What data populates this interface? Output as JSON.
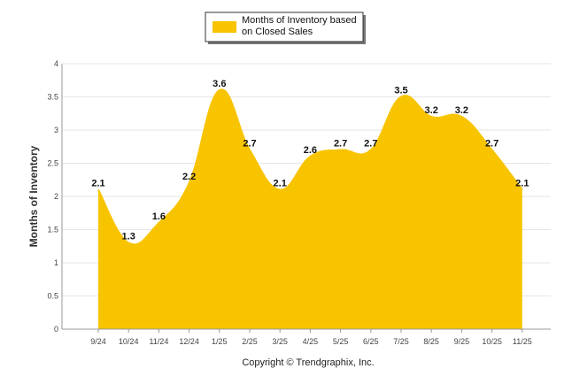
{
  "chart_data": {
    "type": "area",
    "title": "",
    "xlabel": "",
    "ylabel": "Months of Inventory",
    "ylim": [
      0,
      4
    ],
    "yticks": [
      "0",
      "0.5",
      "1",
      "1.5",
      "2",
      "2.5",
      "3",
      "3.5",
      "4"
    ],
    "ytick_values": [
      0,
      0.5,
      1,
      1.5,
      2,
      2.5,
      3,
      3.5,
      4
    ],
    "grid": true,
    "legend_position": "top-center",
    "categories": [
      "9/24",
      "10/24",
      "11/24",
      "12/24",
      "1/25",
      "2/25",
      "3/25",
      "4/25",
      "5/25",
      "6/25",
      "7/25",
      "8/25",
      "9/25",
      "10/25",
      "11/25"
    ],
    "series": [
      {
        "name_lines": [
          "Months of Inventory based",
          "on Closed Sales"
        ],
        "color": "#F8C400",
        "values": [
          2.1,
          1.3,
          1.6,
          2.2,
          3.6,
          2.7,
          2.1,
          2.6,
          2.7,
          2.7,
          3.5,
          3.2,
          3.2,
          2.7,
          2.1
        ],
        "labels": [
          "2.1",
          "1.3",
          "1.6",
          "2.2",
          "3.6",
          "2.7",
          "2.1",
          "2.6",
          "2.7",
          "2.7",
          "3.5",
          "3.2",
          "3.2",
          "2.7",
          "2.1"
        ]
      }
    ]
  },
  "footer": {
    "copyright": "Copyright © Trendgraphix, Inc."
  },
  "colors": {
    "series": "#F8C400",
    "grid": "#e6e6e6",
    "axis": "#999999"
  }
}
